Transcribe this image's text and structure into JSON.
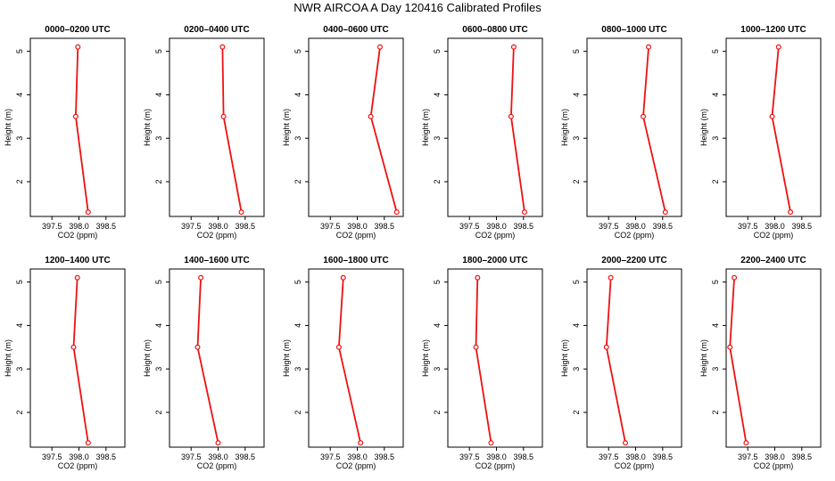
{
  "title": "NWR AIRCOA A  Day 120416  Calibrated Profiles",
  "chart_data": [
    {
      "type": "line",
      "title": "0000–0200 UTC",
      "xlabel": "CO2 (ppm)",
      "ylabel": "Height (m)",
      "x_ticks": [
        "397.5",
        "398.0",
        "398.5"
      ],
      "y_ticks": [
        "2",
        "3",
        "4",
        "5"
      ],
      "xlim": [
        397.1,
        398.85
      ],
      "ylim": [
        1.2,
        5.3
      ],
      "series": [
        {
          "x": [
            398.17,
            397.94,
            397.98
          ],
          "y": [
            1.3,
            3.5,
            5.1
          ]
        }
      ]
    },
    {
      "type": "line",
      "title": "0200–0400 UTC",
      "xlabel": "CO2 (ppm)",
      "ylabel": "Height (m)",
      "x_ticks": [
        "397.5",
        "398.0",
        "398.5"
      ],
      "y_ticks": [
        "2",
        "3",
        "4",
        "5"
      ],
      "xlim": [
        397.1,
        398.85
      ],
      "ylim": [
        1.2,
        5.3
      ],
      "series": [
        {
          "x": [
            398.43,
            398.1,
            398.08
          ],
          "y": [
            1.3,
            3.5,
            5.1
          ]
        }
      ]
    },
    {
      "type": "line",
      "title": "0400–0600 UTC",
      "xlabel": "CO2 (ppm)",
      "ylabel": "Height (m)",
      "x_ticks": [
        "397.5",
        "398.0",
        "398.5"
      ],
      "y_ticks": [
        "2",
        "3",
        "4",
        "5"
      ],
      "xlim": [
        397.1,
        398.85
      ],
      "ylim": [
        1.2,
        5.3
      ],
      "series": [
        {
          "x": [
            398.73,
            398.25,
            398.42
          ],
          "y": [
            1.3,
            3.5,
            5.1
          ]
        }
      ]
    },
    {
      "type": "line",
      "title": "0600–0800 UTC",
      "xlabel": "CO2 (ppm)",
      "ylabel": "Height (m)",
      "x_ticks": [
        "397.5",
        "398.0",
        "398.5"
      ],
      "y_ticks": [
        "2",
        "3",
        "4",
        "5"
      ],
      "xlim": [
        397.1,
        398.85
      ],
      "ylim": [
        1.2,
        5.3
      ],
      "series": [
        {
          "x": [
            398.52,
            398.27,
            398.32
          ],
          "y": [
            1.3,
            3.5,
            5.1
          ]
        }
      ]
    },
    {
      "type": "line",
      "title": "0800–1000 UTC",
      "xlabel": "CO2 (ppm)",
      "ylabel": "Height (m)",
      "x_ticks": [
        "397.5",
        "398.0",
        "398.5"
      ],
      "y_ticks": [
        "2",
        "3",
        "4",
        "5"
      ],
      "xlim": [
        397.1,
        398.85
      ],
      "ylim": [
        1.2,
        5.3
      ],
      "series": [
        {
          "x": [
            398.55,
            398.14,
            398.24
          ],
          "y": [
            1.3,
            3.5,
            5.1
          ]
        }
      ]
    },
    {
      "type": "line",
      "title": "1000–1200 UTC",
      "xlabel": "CO2 (ppm)",
      "ylabel": "Height (m)",
      "x_ticks": [
        "397.5",
        "398.0",
        "398.5"
      ],
      "y_ticks": [
        "2",
        "3",
        "4",
        "5"
      ],
      "xlim": [
        397.1,
        398.85
      ],
      "ylim": [
        1.2,
        5.3
      ],
      "series": [
        {
          "x": [
            398.29,
            397.95,
            398.07
          ],
          "y": [
            1.3,
            3.5,
            5.1
          ]
        }
      ]
    },
    {
      "type": "line",
      "title": "1200–1400 UTC",
      "xlabel": "CO2 (ppm)",
      "ylabel": "Height (m)",
      "x_ticks": [
        "397.5",
        "398.0",
        "398.5"
      ],
      "y_ticks": [
        "2",
        "3",
        "4",
        "5"
      ],
      "xlim": [
        397.1,
        398.85
      ],
      "ylim": [
        1.2,
        5.3
      ],
      "series": [
        {
          "x": [
            398.17,
            397.9,
            397.97
          ],
          "y": [
            1.3,
            3.5,
            5.1
          ]
        }
      ]
    },
    {
      "type": "line",
      "title": "1400–1600 UTC",
      "xlabel": "CO2 (ppm)",
      "ylabel": "Height (m)",
      "x_ticks": [
        "397.5",
        "398.0",
        "398.5"
      ],
      "y_ticks": [
        "2",
        "3",
        "4",
        "5"
      ],
      "xlim": [
        397.1,
        398.85
      ],
      "ylim": [
        1.2,
        5.3
      ],
      "series": [
        {
          "x": [
            398.0,
            397.62,
            397.68
          ],
          "y": [
            1.3,
            3.5,
            5.1
          ]
        }
      ]
    },
    {
      "type": "line",
      "title": "1600–1800 UTC",
      "xlabel": "CO2 (ppm)",
      "ylabel": "Height (m)",
      "x_ticks": [
        "397.5",
        "398.0",
        "398.5"
      ],
      "y_ticks": [
        "2",
        "3",
        "4",
        "5"
      ],
      "xlim": [
        397.1,
        398.85
      ],
      "ylim": [
        1.2,
        5.3
      ],
      "series": [
        {
          "x": [
            398.06,
            397.66,
            397.74
          ],
          "y": [
            1.3,
            3.5,
            5.1
          ]
        }
      ]
    },
    {
      "type": "line",
      "title": "1800–2000 UTC",
      "xlabel": "CO2 (ppm)",
      "ylabel": "Height (m)",
      "x_ticks": [
        "397.5",
        "398.0",
        "398.5"
      ],
      "y_ticks": [
        "2",
        "3",
        "4",
        "5"
      ],
      "xlim": [
        397.1,
        398.85
      ],
      "ylim": [
        1.2,
        5.3
      ],
      "series": [
        {
          "x": [
            397.9,
            397.62,
            397.65
          ],
          "y": [
            1.3,
            3.5,
            5.1
          ]
        }
      ]
    },
    {
      "type": "line",
      "title": "2000–2200 UTC",
      "xlabel": "CO2 (ppm)",
      "ylabel": "Height (m)",
      "x_ticks": [
        "397.5",
        "398.0",
        "398.5"
      ],
      "y_ticks": [
        "2",
        "3",
        "4",
        "5"
      ],
      "xlim": [
        397.1,
        398.85
      ],
      "ylim": [
        1.2,
        5.3
      ],
      "series": [
        {
          "x": [
            397.81,
            397.46,
            397.54
          ],
          "y": [
            1.3,
            3.5,
            5.1
          ]
        }
      ]
    },
    {
      "type": "line",
      "title": "2200–2400 UTC",
      "xlabel": "CO2 (ppm)",
      "ylabel": "Height (m)",
      "x_ticks": [
        "397.5",
        "398.0",
        "398.5"
      ],
      "y_ticks": [
        "2",
        "3",
        "4",
        "5"
      ],
      "xlim": [
        397.1,
        398.85
      ],
      "ylim": [
        1.2,
        5.3
      ],
      "series": [
        {
          "x": [
            397.47,
            397.17,
            397.25
          ],
          "y": [
            1.3,
            3.5,
            5.1
          ]
        }
      ]
    }
  ],
  "colors": {
    "series": "#ee1111",
    "axis": "#000000"
  }
}
